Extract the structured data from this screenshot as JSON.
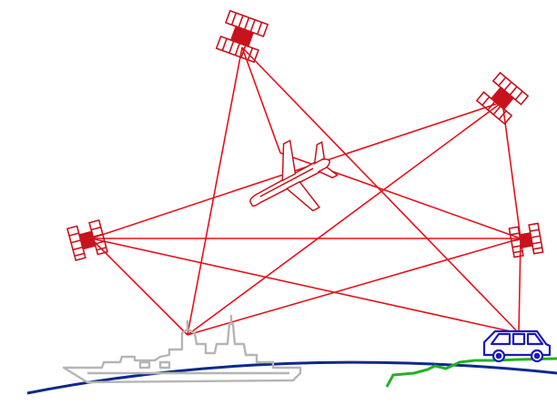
{
  "colors": {
    "links": "#e8101a",
    "icons": "#c8131c",
    "ship": "#b5b5b5",
    "earth": "#0d2a8c",
    "land": "#22b222",
    "car": "#1a1ab8",
    "background": "#ffffff"
  },
  "nodes": [
    {
      "id": "satellite-top",
      "type": "satellite"
    },
    {
      "id": "satellite-right-upper",
      "type": "satellite"
    },
    {
      "id": "satellite-left",
      "type": "satellite"
    },
    {
      "id": "satellite-right-lower",
      "type": "satellite"
    },
    {
      "id": "aircraft",
      "type": "airplane"
    },
    {
      "id": "ship",
      "type": "ship"
    },
    {
      "id": "car",
      "type": "vehicle"
    }
  ],
  "links": [
    [
      "satellite-top",
      "aircraft"
    ],
    [
      "satellite-top",
      "ship"
    ],
    [
      "satellite-top",
      "car"
    ],
    [
      "satellite-left",
      "satellite-right-upper"
    ],
    [
      "satellite-left",
      "satellite-right-lower"
    ],
    [
      "satellite-left",
      "ship"
    ],
    [
      "satellite-left",
      "car"
    ],
    [
      "satellite-right-upper",
      "ship"
    ],
    [
      "satellite-right-upper",
      "satellite-right-lower"
    ],
    [
      "satellite-right-lower",
      "ship"
    ],
    [
      "satellite-right-lower",
      "car"
    ],
    [
      "aircraft",
      "satellite-right-lower"
    ]
  ]
}
